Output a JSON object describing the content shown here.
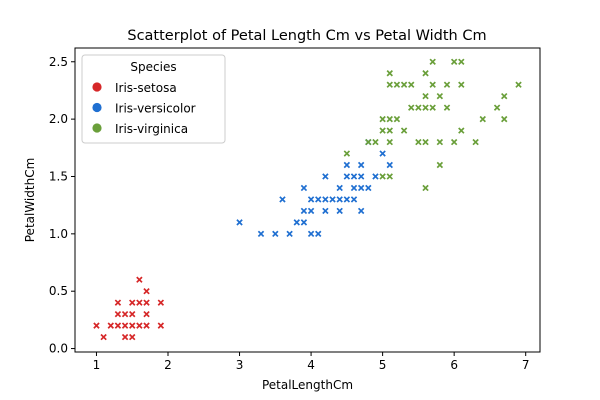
{
  "chart_data": {
    "type": "scatter",
    "title": "Scatterplot of Petal Length Cm vs Petal Width Cm",
    "xlabel": "PetalLengthCm",
    "ylabel": "PetalWidthCm",
    "xlim": [
      0.7,
      7.2
    ],
    "ylim": [
      -0.03,
      2.62
    ],
    "xticks": [
      1,
      2,
      3,
      4,
      5,
      6,
      7
    ],
    "xtick_labels": [
      "1",
      "2",
      "3",
      "4",
      "5",
      "6",
      "7"
    ],
    "yticks": [
      0.0,
      0.5,
      1.0,
      1.5,
      2.0,
      2.5
    ],
    "ytick_labels": [
      "0.0",
      "0.5",
      "1.0",
      "1.5",
      "2.0",
      "2.5"
    ],
    "grid": false,
    "marker": "x",
    "legend": {
      "title": "Species",
      "placement": "top-left"
    },
    "series": [
      {
        "name": "Iris-setosa",
        "color": "#d62728",
        "points": [
          [
            1.0,
            0.2
          ],
          [
            1.1,
            0.1
          ],
          [
            1.2,
            0.2
          ],
          [
            1.3,
            0.2
          ],
          [
            1.3,
            0.3
          ],
          [
            1.3,
            0.4
          ],
          [
            1.4,
            0.1
          ],
          [
            1.4,
            0.2
          ],
          [
            1.4,
            0.3
          ],
          [
            1.5,
            0.1
          ],
          [
            1.5,
            0.2
          ],
          [
            1.5,
            0.3
          ],
          [
            1.5,
            0.4
          ],
          [
            1.6,
            0.2
          ],
          [
            1.6,
            0.4
          ],
          [
            1.6,
            0.6
          ],
          [
            1.7,
            0.2
          ],
          [
            1.7,
            0.3
          ],
          [
            1.7,
            0.4
          ],
          [
            1.7,
            0.5
          ],
          [
            1.9,
            0.2
          ],
          [
            1.9,
            0.4
          ]
        ]
      },
      {
        "name": "Iris-versicolor",
        "color": "#1f6fd1",
        "points": [
          [
            3.0,
            1.1
          ],
          [
            3.3,
            1.0
          ],
          [
            3.5,
            1.0
          ],
          [
            3.6,
            1.3
          ],
          [
            3.7,
            1.0
          ],
          [
            3.8,
            1.1
          ],
          [
            3.9,
            1.1
          ],
          [
            3.9,
            1.2
          ],
          [
            3.9,
            1.4
          ],
          [
            4.0,
            1.0
          ],
          [
            4.0,
            1.2
          ],
          [
            4.0,
            1.3
          ],
          [
            4.1,
            1.0
          ],
          [
            4.1,
            1.3
          ],
          [
            4.2,
            1.2
          ],
          [
            4.2,
            1.3
          ],
          [
            4.2,
            1.5
          ],
          [
            4.3,
            1.3
          ],
          [
            4.4,
            1.2
          ],
          [
            4.4,
            1.3
          ],
          [
            4.4,
            1.4
          ],
          [
            4.5,
            1.3
          ],
          [
            4.5,
            1.5
          ],
          [
            4.5,
            1.6
          ],
          [
            4.6,
            1.3
          ],
          [
            4.6,
            1.4
          ],
          [
            4.6,
            1.5
          ],
          [
            4.7,
            1.2
          ],
          [
            4.7,
            1.4
          ],
          [
            4.7,
            1.5
          ],
          [
            4.7,
            1.6
          ],
          [
            4.8,
            1.4
          ],
          [
            4.8,
            1.8
          ],
          [
            4.9,
            1.5
          ],
          [
            5.0,
            1.7
          ],
          [
            5.1,
            1.6
          ]
        ]
      },
      {
        "name": "Iris-virginica",
        "color": "#6a9f3a",
        "points": [
          [
            4.5,
            1.7
          ],
          [
            4.8,
            1.8
          ],
          [
            4.9,
            1.8
          ],
          [
            5.0,
            1.5
          ],
          [
            5.0,
            1.9
          ],
          [
            5.0,
            2.0
          ],
          [
            5.1,
            1.5
          ],
          [
            5.1,
            1.8
          ],
          [
            5.1,
            1.9
          ],
          [
            5.1,
            2.0
          ],
          [
            5.1,
            2.3
          ],
          [
            5.1,
            2.4
          ],
          [
            5.2,
            2.0
          ],
          [
            5.2,
            2.3
          ],
          [
            5.3,
            1.9
          ],
          [
            5.3,
            2.3
          ],
          [
            5.4,
            2.1
          ],
          [
            5.4,
            2.3
          ],
          [
            5.5,
            1.8
          ],
          [
            5.5,
            2.1
          ],
          [
            5.6,
            1.4
          ],
          [
            5.6,
            1.8
          ],
          [
            5.6,
            2.1
          ],
          [
            5.6,
            2.2
          ],
          [
            5.6,
            2.4
          ],
          [
            5.7,
            2.1
          ],
          [
            5.7,
            2.3
          ],
          [
            5.7,
            2.5
          ],
          [
            5.8,
            1.6
          ],
          [
            5.8,
            1.8
          ],
          [
            5.8,
            2.2
          ],
          [
            5.9,
            2.1
          ],
          [
            5.9,
            2.3
          ],
          [
            6.0,
            1.8
          ],
          [
            6.0,
            2.5
          ],
          [
            6.1,
            1.9
          ],
          [
            6.1,
            2.3
          ],
          [
            6.1,
            2.5
          ],
          [
            6.3,
            1.8
          ],
          [
            6.4,
            2.0
          ],
          [
            6.6,
            2.1
          ],
          [
            6.7,
            2.0
          ],
          [
            6.7,
            2.2
          ],
          [
            6.9,
            2.3
          ]
        ]
      }
    ]
  }
}
